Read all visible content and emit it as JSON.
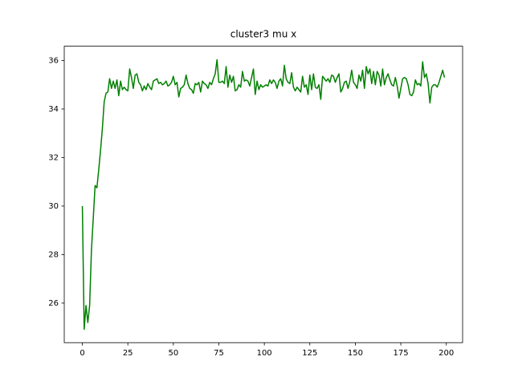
{
  "chart_data": {
    "type": "line",
    "title": "cluster3 mu x",
    "color": "#008000",
    "x": [
      0,
      1,
      2,
      3,
      4,
      5,
      6,
      7,
      8,
      9,
      10,
      11,
      12,
      13,
      14,
      15,
      16,
      17,
      18,
      19,
      20,
      21,
      22,
      23,
      24,
      25,
      26,
      27,
      28,
      29,
      30,
      31,
      32,
      33,
      34,
      35,
      36,
      37,
      38,
      39,
      40,
      41,
      42,
      43,
      44,
      45,
      46,
      47,
      48,
      49,
      50,
      51,
      52,
      53,
      54,
      55,
      56,
      57,
      58,
      59,
      60,
      61,
      62,
      63,
      64,
      65,
      66,
      67,
      68,
      69,
      70,
      71,
      72,
      73,
      74,
      75,
      76,
      77,
      78,
      79,
      80,
      81,
      82,
      83,
      84,
      85,
      86,
      87,
      88,
      89,
      90,
      91,
      92,
      93,
      94,
      95,
      96,
      97,
      98,
      99,
      100,
      101,
      102,
      103,
      104,
      105,
      106,
      107,
      108,
      109,
      110,
      111,
      112,
      113,
      114,
      115,
      116,
      117,
      118,
      119,
      120,
      121,
      122,
      123,
      124,
      125,
      126,
      127,
      128,
      129,
      130,
      131,
      132,
      133,
      134,
      135,
      136,
      137,
      138,
      139,
      140,
      141,
      142,
      143,
      144,
      145,
      146,
      147,
      148,
      149,
      150,
      151,
      152,
      153,
      154,
      155,
      156,
      157,
      158,
      159,
      160,
      161,
      162,
      163,
      164,
      165,
      166,
      167,
      168,
      169,
      170,
      171,
      172,
      173,
      174,
      175,
      176,
      177,
      178,
      179,
      180,
      181,
      182,
      183,
      184,
      185,
      186,
      187,
      188,
      189,
      190,
      191,
      192,
      193,
      194,
      195,
      196,
      197,
      198,
      199
    ],
    "values": [
      30.0,
      24.92,
      25.9,
      25.2,
      25.9,
      28.2,
      29.5,
      30.85,
      30.75,
      31.5,
      32.3,
      33.2,
      34.3,
      34.65,
      34.7,
      35.25,
      34.85,
      35.15,
      34.85,
      35.2,
      34.55,
      35.15,
      34.8,
      34.9,
      34.8,
      34.75,
      35.65,
      35.3,
      34.85,
      35.4,
      35.45,
      35.1,
      35.0,
      34.75,
      34.95,
      34.8,
      35.05,
      34.9,
      34.8,
      35.15,
      35.2,
      35.25,
      35.05,
      35.1,
      35.0,
      35.05,
      35.15,
      34.95,
      35.0,
      35.1,
      35.35,
      35.0,
      35.1,
      34.5,
      34.85,
      34.9,
      35.0,
      35.4,
      35.05,
      34.85,
      34.8,
      34.65,
      35.05,
      35.0,
      35.1,
      34.7,
      35.15,
      35.05,
      35.0,
      34.85,
      35.1,
      35.0,
      35.25,
      35.45,
      36.03,
      35.1,
      35.1,
      35.15,
      35.05,
      35.75,
      34.9,
      35.4,
      35.1,
      35.35,
      34.75,
      34.8,
      35.0,
      34.9,
      35.55,
      35.15,
      35.2,
      35.15,
      34.95,
      35.3,
      35.65,
      34.6,
      35.15,
      34.8,
      35.0,
      34.9,
      34.95,
      35.0,
      34.95,
      35.2,
      35.05,
      35.2,
      35.1,
      34.85,
      35.15,
      35.25,
      34.95,
      35.8,
      35.25,
      35.1,
      35.05,
      35.5,
      34.9,
      34.75,
      34.9,
      34.8,
      34.7,
      35.35,
      34.9,
      35.0,
      34.6,
      35.4,
      34.8,
      35.45,
      34.9,
      34.85,
      35.0,
      34.4,
      35.35,
      35.25,
      35.15,
      35.25,
      35.1,
      35.4,
      35.35,
      35.1,
      35.3,
      35.45,
      34.7,
      34.85,
      35.1,
      35.15,
      34.85,
      35.15,
      35.6,
      35.1,
      35.0,
      34.85,
      35.4,
      35.15,
      35.6,
      34.85,
      35.75,
      35.45,
      35.65,
      35.05,
      35.55,
      35.0,
      35.55,
      35.4,
      34.95,
      35.65,
      35.0,
      35.3,
      35.45,
      35.2,
      35.0,
      34.95,
      35.3,
      34.95,
      34.45,
      34.85,
      35.25,
      35.3,
      35.25,
      35.0,
      34.6,
      34.55,
      34.7,
      35.2,
      35.0,
      35.05,
      34.95,
      35.95,
      35.3,
      35.45,
      35.05,
      34.25,
      34.9,
      35.0,
      35.0,
      34.9,
      35.1,
      35.35,
      35.6,
      35.3
    ],
    "xlim": [
      -9.95,
      208.95
    ],
    "xticks": [
      0,
      25,
      50,
      75,
      100,
      125,
      150,
      175,
      200
    ],
    "ylim": [
      24.37,
      36.59
    ],
    "yticks": [
      26,
      28,
      30,
      32,
      34,
      36
    ],
    "grid": false
  }
}
